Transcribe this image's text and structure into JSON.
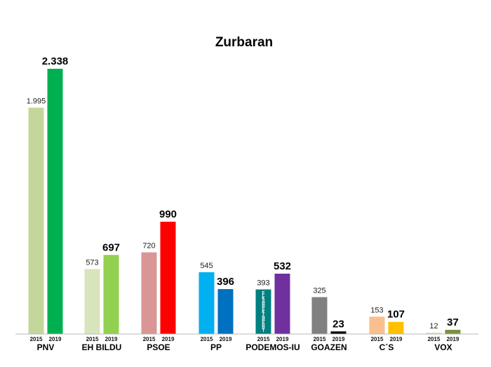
{
  "chart_data": {
    "type": "bar",
    "title": "Zurbaran",
    "categories": [
      "PNV",
      "EH BILDU",
      "PSOE",
      "PP",
      "PODEMOS-IU",
      "GOAZEN",
      "C´S",
      "VOX"
    ],
    "series": [
      {
        "name": "2015",
        "values": [
          1995,
          573,
          720,
          545,
          393,
          325,
          153,
          12
        ],
        "labels": [
          "1.995",
          "573",
          "720",
          "545",
          "393",
          "325",
          "153",
          "12"
        ],
        "colors": [
          "#c4d79b",
          "#d8e4bc",
          "#da9694",
          "#00b0f0",
          "#008080",
          "#808080",
          "#fabf8f",
          "#d8e4bc"
        ]
      },
      {
        "name": "2019",
        "values": [
          2338,
          697,
          990,
          396,
          532,
          23,
          107,
          37
        ],
        "labels": [
          "2.338",
          "697",
          "990",
          "396",
          "532",
          "23",
          "107",
          "37"
        ],
        "colors": [
          "#00b050",
          "#92d050",
          "#ff0000",
          "#0070c0",
          "#7030a0",
          "#000000",
          "#ffc000",
          "#77933c"
        ]
      }
    ],
    "bar_overlay_text": "ELKARREKIN BERRI",
    "ylim": [
      0,
      2338
    ],
    "grid": false,
    "legend": "none"
  }
}
